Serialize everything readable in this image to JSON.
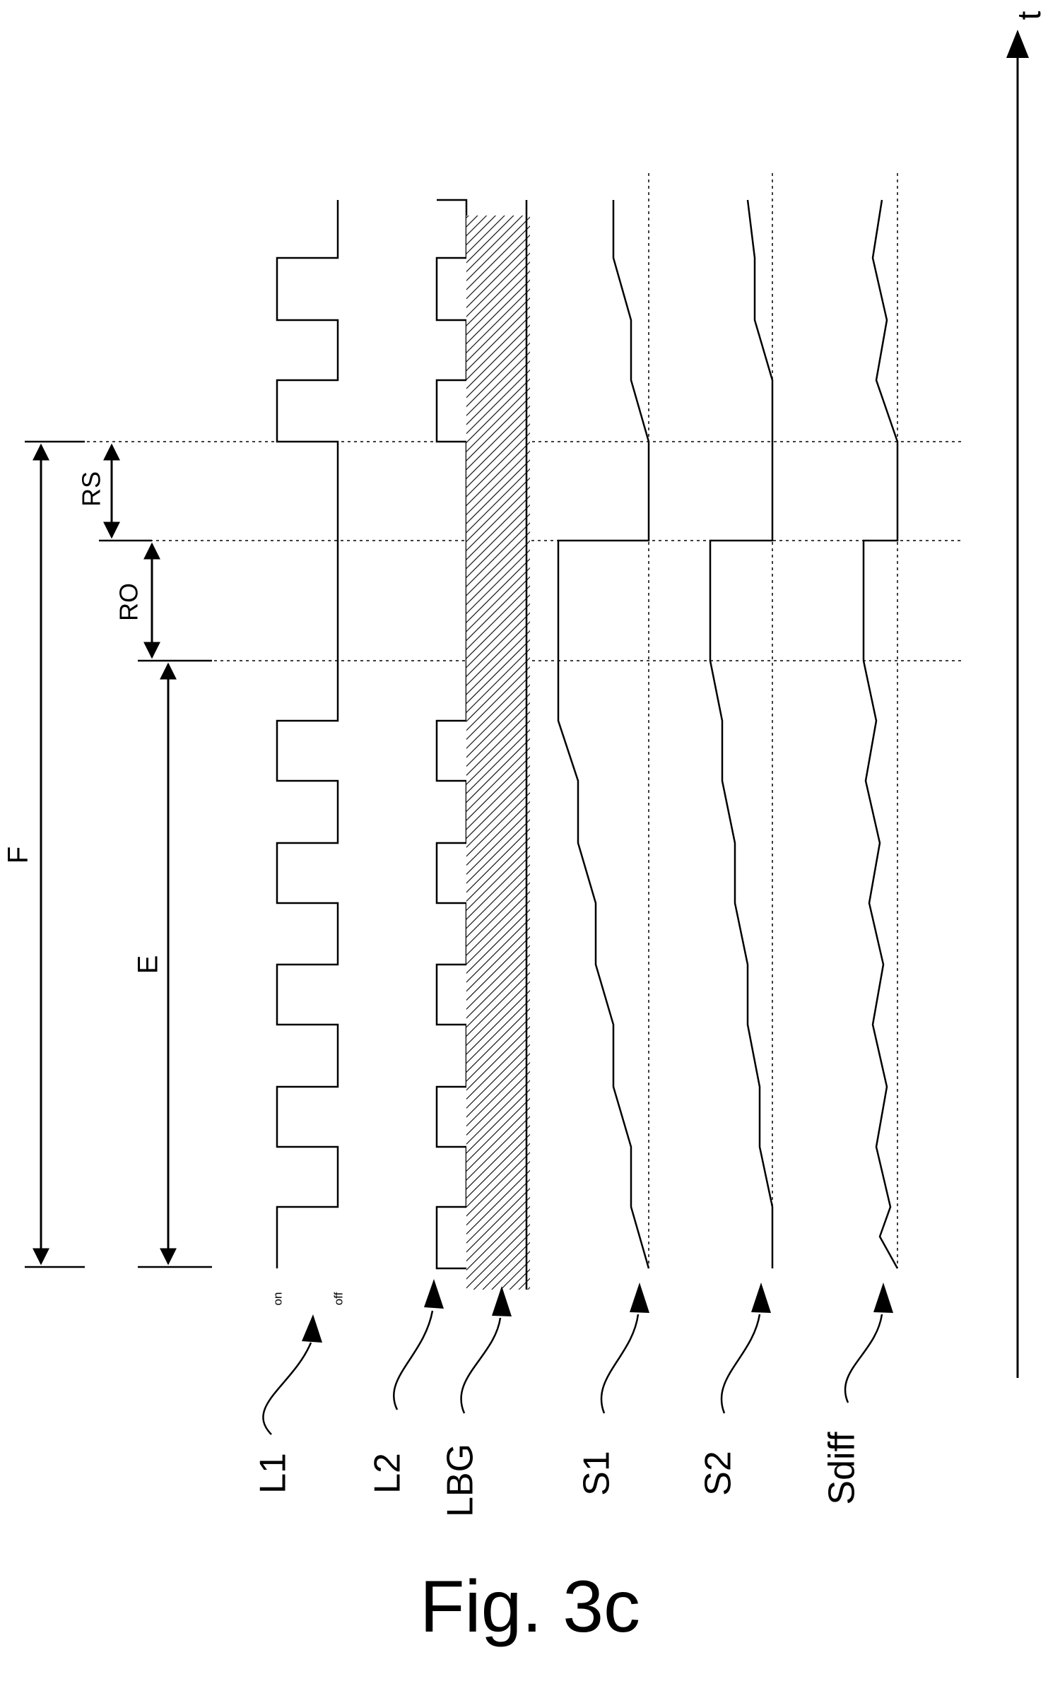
{
  "figure": {
    "caption": "Fig. 3c",
    "time_axis_label": "t",
    "signal_labels": {
      "L1": "L1",
      "L2": "L2",
      "LBG": "LBG",
      "S1": "S1",
      "S2": "S2",
      "Sdiff": "Sdiff"
    },
    "l1_state_labels": {
      "on": "on",
      "off": "off"
    },
    "intervals": {
      "F": "F",
      "E": "E",
      "RO": "RO",
      "RS": "RS"
    }
  }
}
